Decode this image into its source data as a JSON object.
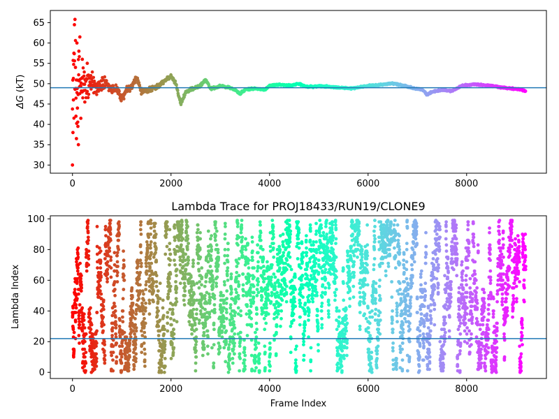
{
  "chart_data": [
    {
      "type": "scatter",
      "title": "",
      "xlabel": "",
      "ylabel_symbol": "ΔG",
      "ylabel_unit": " (kT)",
      "xlim": [
        -450,
        9620
      ],
      "ylim": [
        28,
        68
      ],
      "xticks": [
        0,
        2000,
        4000,
        6000,
        8000
      ],
      "yticks": [
        30,
        35,
        40,
        45,
        50,
        55,
        60,
        65
      ],
      "xtick_labels": [
        "0",
        "2000",
        "4000",
        "6000",
        "8000"
      ],
      "ytick_labels": [
        "30",
        "35",
        "40",
        "45",
        "50",
        "55",
        "60",
        "65"
      ],
      "hline": 49.0,
      "hline_color": "#1f77b4",
      "colormap": "rainbow (reversed: red at frame 0, violet at last frame)",
      "n_frames": 9200,
      "anchor_points": [
        [
          0,
          49
        ],
        [
          30,
          53
        ],
        [
          80,
          49
        ],
        [
          150,
          50
        ],
        [
          250,
          49.5
        ],
        [
          350,
          50
        ],
        [
          500,
          49.5
        ],
        [
          650,
          50
        ],
        [
          800,
          48.5
        ],
        [
          900,
          49
        ],
        [
          1000,
          46
        ],
        [
          1100,
          48.5
        ],
        [
          1200,
          49
        ],
        [
          1300,
          51.5
        ],
        [
          1400,
          48
        ],
        [
          1500,
          48.3
        ],
        [
          1600,
          48.8
        ],
        [
          1700,
          49
        ],
        [
          1800,
          50
        ],
        [
          1950,
          51.5
        ],
        [
          2000,
          51.8
        ],
        [
          2100,
          50
        ],
        [
          2200,
          45
        ],
        [
          2300,
          48
        ],
        [
          2400,
          48.5
        ],
        [
          2500,
          49
        ],
        [
          2600,
          49.5
        ],
        [
          2700,
          51
        ],
        [
          2800,
          48.8
        ],
        [
          2900,
          49
        ],
        [
          3000,
          49.5
        ],
        [
          3100,
          49.2
        ],
        [
          3200,
          49
        ],
        [
          3300,
          48.5
        ],
        [
          3400,
          47.5
        ],
        [
          3500,
          48.5
        ],
        [
          3700,
          48.8
        ],
        [
          3900,
          48.5
        ],
        [
          4000,
          49.5
        ],
        [
          4200,
          49.8
        ],
        [
          4400,
          49.5
        ],
        [
          4600,
          50
        ],
        [
          4700,
          49.5
        ],
        [
          4800,
          49.2
        ],
        [
          5000,
          49.4
        ],
        [
          5300,
          49.2
        ],
        [
          5500,
          49
        ],
        [
          5700,
          48.8
        ],
        [
          5900,
          49.3
        ],
        [
          6100,
          49.6
        ],
        [
          6300,
          49.8
        ],
        [
          6500,
          50.1
        ],
        [
          6700,
          49.6
        ],
        [
          6900,
          49
        ],
        [
          7100,
          48.5
        ],
        [
          7200,
          47.3
        ],
        [
          7300,
          48
        ],
        [
          7500,
          48.5
        ],
        [
          7700,
          48.2
        ],
        [
          7900,
          49.5
        ],
        [
          8100,
          49.8
        ],
        [
          8300,
          49.7
        ],
        [
          8500,
          49.5
        ],
        [
          8700,
          49.1
        ],
        [
          8900,
          48.8
        ],
        [
          9100,
          48.6
        ],
        [
          9200,
          48.1
        ]
      ],
      "early_outliers": [
        [
          0,
          30.0
        ],
        [
          10,
          38.0
        ],
        [
          20,
          46.0
        ],
        [
          30,
          57.5
        ],
        [
          40,
          64.5
        ],
        [
          50,
          65.8
        ],
        [
          60,
          54.0
        ],
        [
          70,
          42.0
        ],
        [
          80,
          36.5
        ],
        [
          90,
          60.0
        ],
        [
          100,
          44.0
        ],
        [
          110,
          39.5
        ],
        [
          120,
          35.0
        ],
        [
          130,
          58.0
        ],
        [
          150,
          61.5
        ],
        [
          170,
          41.5
        ],
        [
          200,
          56.0
        ],
        [
          250,
          45.5
        ],
        [
          300,
          55.0
        ]
      ]
    },
    {
      "type": "scatter",
      "title": "Lambda Trace for PROJ18433/RUN19/CLONE9",
      "xlabel": "Frame Index",
      "ylabel": "Lambda Index",
      "xlim": [
        -450,
        9620
      ],
      "ylim": [
        -4,
        102
      ],
      "xticks": [
        0,
        2000,
        4000,
        6000,
        8000
      ],
      "yticks": [
        0,
        20,
        40,
        60,
        80,
        100
      ],
      "xtick_labels": [
        "0",
        "2000",
        "4000",
        "6000",
        "8000"
      ],
      "ytick_labels": [
        "0",
        "20",
        "40",
        "60",
        "80",
        "100"
      ],
      "hline": 22,
      "hline_color": "#1f77b4",
      "colormap": "rainbow (reversed: red at frame 0, violet at last frame)",
      "n_frames": 9200,
      "lambda_range": [
        0,
        99
      ],
      "description_of_values": "lambda index randomly wanders across 0-99 for each frame"
    }
  ]
}
